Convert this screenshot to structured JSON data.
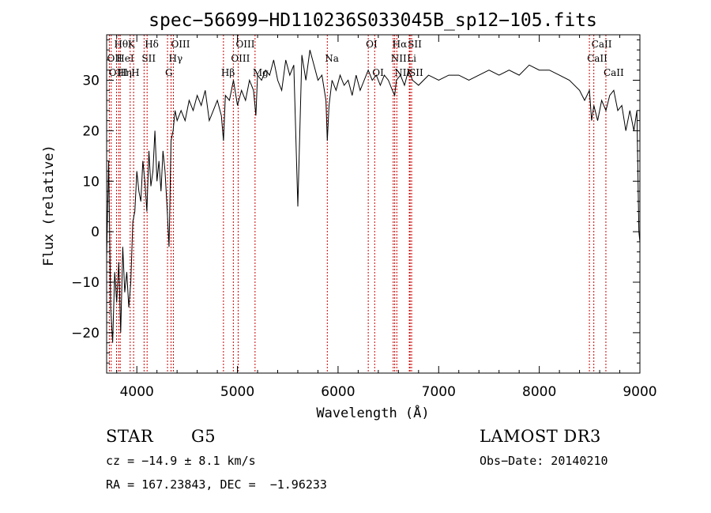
{
  "chart_data": {
    "type": "line",
    "title": "spec−56699−HD110236S033045B_sp12−105.fits",
    "xlabel": "Wavelength (Å)",
    "ylabel": "Flux (relative)",
    "xlim": [
      3700,
      9000
    ],
    "ylim": [
      -28,
      39
    ],
    "x_ticks": [
      4000,
      5000,
      6000,
      7000,
      8000,
      9000
    ],
    "x_tick_labels": [
      "4000",
      "5000",
      "6000",
      "7000",
      "8000",
      "9000"
    ],
    "y_ticks": [
      -20,
      -10,
      0,
      10,
      20,
      30
    ],
    "y_tick_labels": [
      "−20",
      "−10",
      "0",
      "10",
      "20",
      "30"
    ],
    "series": [
      {
        "name": "flux",
        "x": [
          3700,
          3720,
          3740,
          3760,
          3780,
          3800,
          3820,
          3840,
          3860,
          3880,
          3900,
          3920,
          3940,
          3960,
          3980,
          4000,
          4020,
          4040,
          4060,
          4080,
          4100,
          4120,
          4140,
          4160,
          4180,
          4200,
          4220,
          4240,
          4260,
          4280,
          4300,
          4320,
          4340,
          4360,
          4380,
          4400,
          4440,
          4480,
          4520,
          4560,
          4600,
          4640,
          4680,
          4720,
          4760,
          4800,
          4840,
          4861,
          4880,
          4920,
          4960,
          5000,
          5040,
          5080,
          5120,
          5160,
          5183,
          5200,
          5240,
          5280,
          5320,
          5360,
          5400,
          5440,
          5480,
          5520,
          5560,
          5600,
          5640,
          5680,
          5720,
          5760,
          5800,
          5840,
          5880,
          5893,
          5910,
          5940,
          5980,
          6020,
          6060,
          6100,
          6140,
          6180,
          6220,
          6260,
          6300,
          6340,
          6380,
          6420,
          6460,
          6500,
          6540,
          6563,
          6580,
          6620,
          6660,
          6700,
          6740,
          6800,
          6900,
          7000,
          7100,
          7200,
          7300,
          7400,
          7500,
          7600,
          7700,
          7800,
          7900,
          8000,
          8100,
          8200,
          8300,
          8400,
          8450,
          8498,
          8520,
          8542,
          8580,
          8620,
          8662,
          8700,
          8740,
          8780,
          8820,
          8860,
          8900,
          8940,
          8970,
          8990,
          9000
        ],
        "y": [
          -5,
          14,
          -15,
          -22,
          -8,
          -14,
          -6,
          -20,
          -3,
          -12,
          -8,
          -15,
          -10,
          2,
          4,
          12,
          8,
          6,
          14,
          10,
          4,
          16,
          9,
          12,
          20,
          10,
          14,
          8,
          16,
          12,
          5,
          -3,
          18,
          20,
          24,
          22,
          24,
          22,
          26,
          24,
          27,
          25,
          28,
          22,
          24,
          26,
          23,
          18,
          27,
          26,
          30,
          25,
          28,
          26,
          30,
          28,
          23,
          31,
          30,
          32,
          31,
          34,
          30,
          28,
          34,
          31,
          33,
          5,
          35,
          30,
          36,
          33,
          30,
          31,
          26,
          18,
          25,
          30,
          28,
          31,
          29,
          30,
          27,
          31,
          28,
          30,
          32,
          30,
          31,
          29,
          31,
          30,
          28,
          27,
          30,
          31,
          29,
          32,
          30,
          29,
          31,
          30,
          31,
          31,
          30,
          31,
          32,
          31,
          32,
          31,
          33,
          32,
          32,
          31,
          30,
          28,
          26,
          28,
          22,
          25,
          22,
          26,
          24,
          27,
          28,
          24,
          25,
          20,
          24,
          20,
          24,
          0,
          -2
        ]
      }
    ],
    "lines": [
      {
        "name": "Hθ",
        "x": 3798,
        "row": 1
      },
      {
        "name": "OII",
        "x": 3727,
        "row": 2
      },
      {
        "name": "OIII",
        "x": 3745,
        "row": 3
      },
      {
        "name": "K",
        "x": 3934,
        "row": 1
      },
      {
        "name": "Hη",
        "x": 3835,
        "row": 3
      },
      {
        "name": "HeI",
        "x": 3820,
        "row": 2
      },
      {
        "name": "H",
        "x": 3968,
        "row": 3
      },
      {
        "name": "Hδ",
        "x": 4102,
        "row": 1
      },
      {
        "name": "SII",
        "x": 4072,
        "row": 2
      },
      {
        "name": "OIII",
        "x": 4363,
        "row": 1
      },
      {
        "name": "Hγ",
        "x": 4340,
        "row": 2
      },
      {
        "name": "G",
        "x": 4305,
        "row": 3
      },
      {
        "name": "Hβ",
        "x": 4861,
        "row": 3
      },
      {
        "name": "OIII",
        "x": 5007,
        "row": 1
      },
      {
        "name": "OIII",
        "x": 4959,
        "row": 2
      },
      {
        "name": "Mg",
        "x": 5175,
        "row": 3
      },
      {
        "name": "Na",
        "x": 5893,
        "row": 2
      },
      {
        "name": "OI",
        "x": 6300,
        "row": 1
      },
      {
        "name": "OI",
        "x": 6364,
        "row": 3
      },
      {
        "name": "Hα",
        "x": 6563,
        "row": 1
      },
      {
        "name": "NII",
        "x": 6548,
        "row": 2
      },
      {
        "name": "NII",
        "x": 6584,
        "row": 3
      },
      {
        "name": "SII",
        "x": 6716,
        "row": 1
      },
      {
        "name": "Li",
        "x": 6708,
        "row": 2
      },
      {
        "name": "SII",
        "x": 6731,
        "row": 3
      },
      {
        "name": "CaII",
        "x": 8542,
        "row": 1
      },
      {
        "name": "CaII",
        "x": 8498,
        "row": 2
      },
      {
        "name": "CaII",
        "x": 8662,
        "row": 3
      }
    ]
  },
  "info": {
    "object_class": "STAR",
    "subclass": "G5",
    "survey": "LAMOST DR3",
    "redshift": "cz = −14.9 ± 8.1 km/s",
    "obs_date": "Obs−Date: 20140210",
    "coords": "RA = 167.23843, DEC =  −1.96233"
  },
  "colors": {
    "line_marker": "#cc0000",
    "spectrum": "#000000",
    "axes": "#000000"
  }
}
